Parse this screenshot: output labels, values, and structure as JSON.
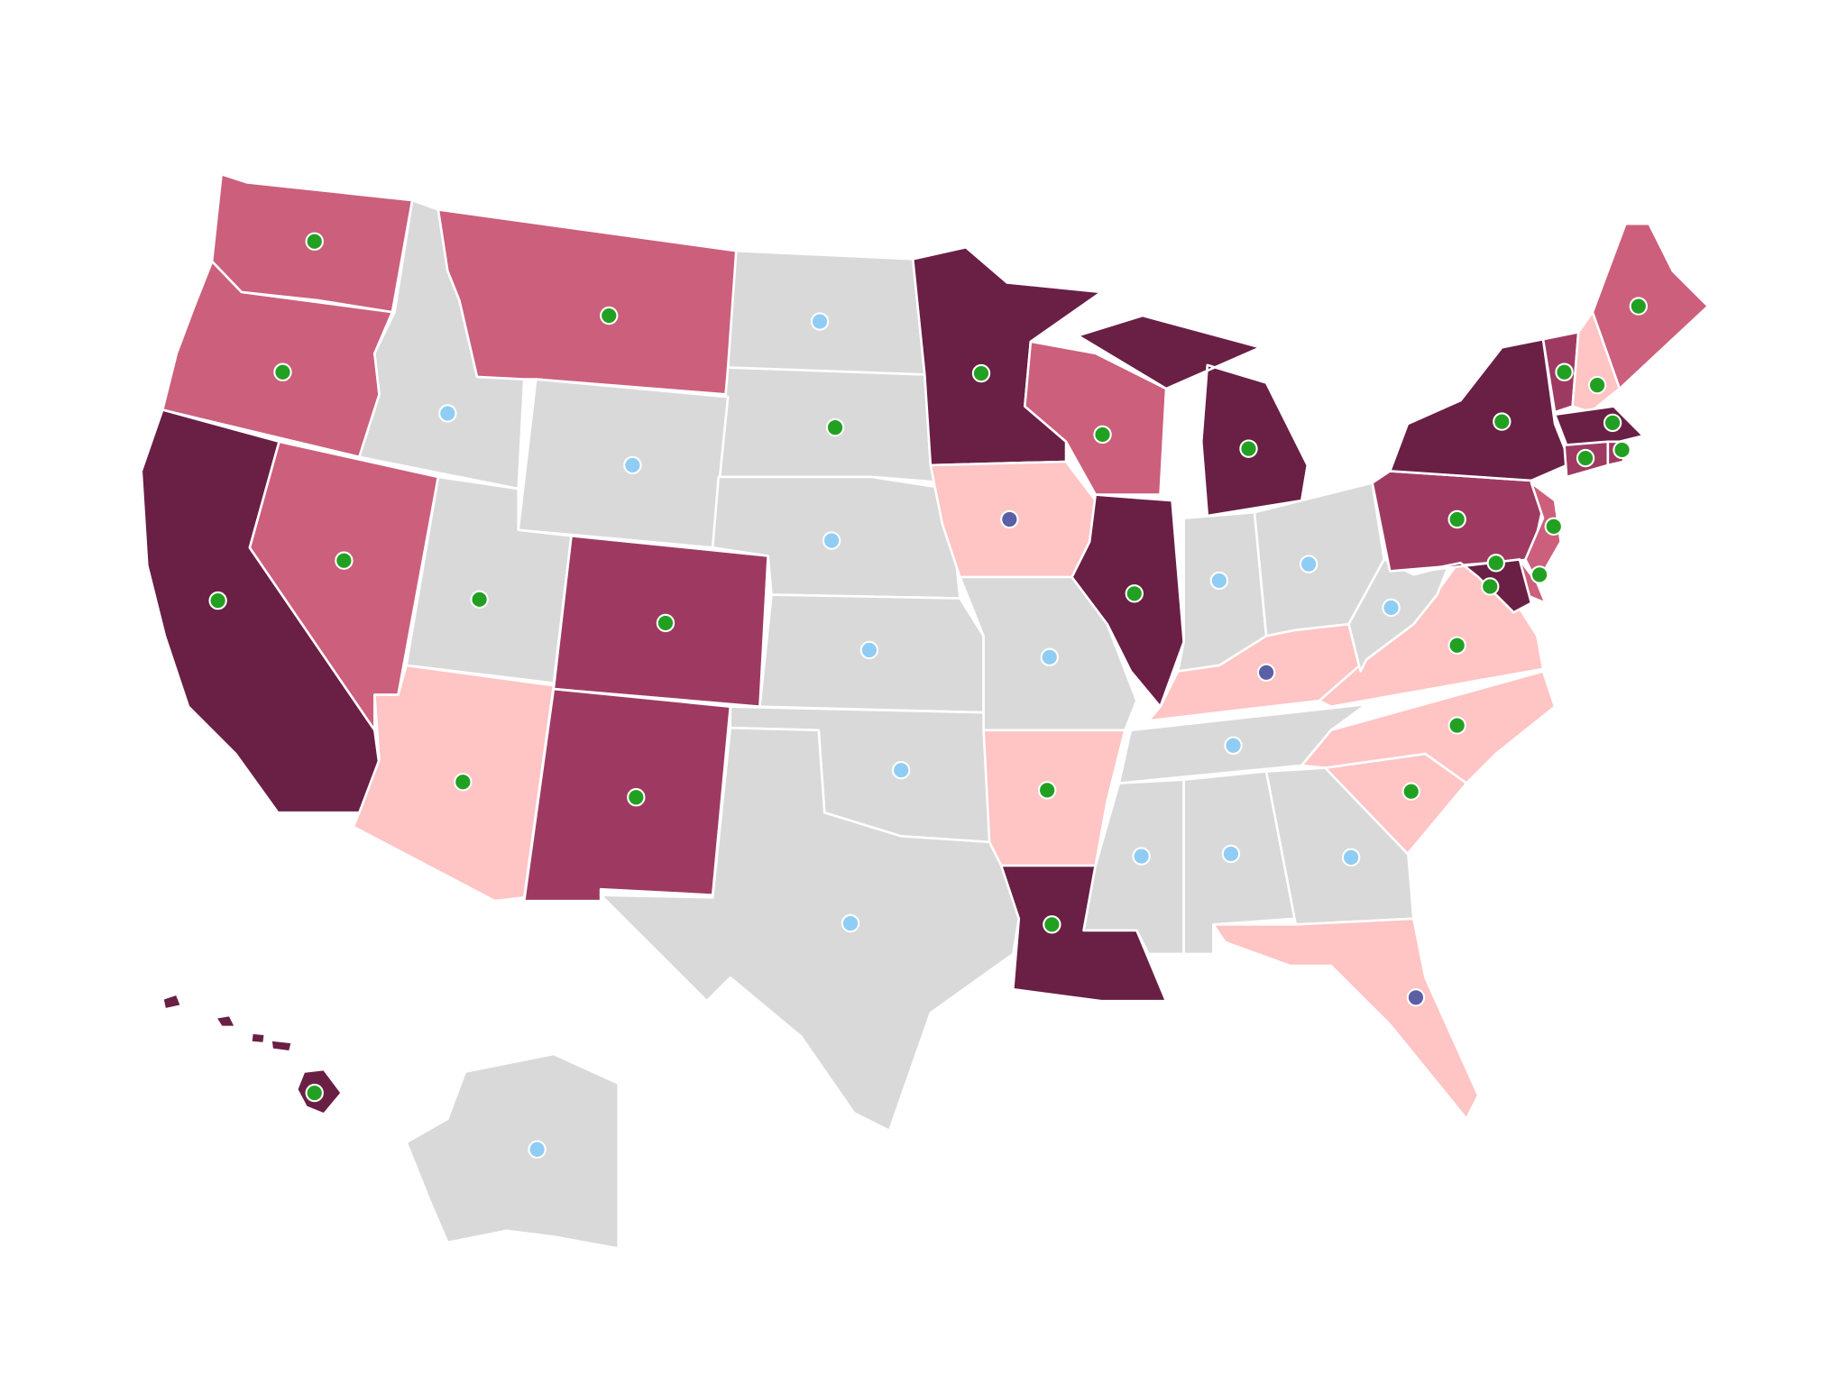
{
  "regions": [
    {
      "fill": "#cc5f7c",
      "dot": "#22a022"
    },
    {
      "fill": "#cc5f7c",
      "dot": "#22a022"
    },
    {
      "fill": "#6a1f45",
      "dot": "#22a022"
    },
    {
      "fill": "#cc5f7c",
      "dot": "#22a022"
    },
    {
      "fill": "#d9d9d9",
      "dot": "#8fcdf5"
    },
    {
      "fill": "#cc5f7c",
      "dot": "#22a022"
    },
    {
      "fill": "#d9d9d9",
      "dot": "#22a022"
    },
    {
      "fill": "#d9d9d9",
      "dot": "#8fcdf5"
    },
    {
      "fill": "#9e3a62",
      "dot": "#22a022"
    },
    {
      "fill": "#ffc4c4",
      "dot": "#22a022"
    },
    {
      "fill": "#9e3a62",
      "dot": "#22a022"
    },
    {
      "fill": "#d9d9d9",
      "dot": "#8fcdf5"
    },
    {
      "fill": "#d9d9d9",
      "dot": "#22a022"
    },
    {
      "fill": "#d9d9d9",
      "dot": "#8fcdf5"
    },
    {
      "fill": "#d9d9d9",
      "dot": "#8fcdf5"
    },
    {
      "fill": "#d9d9d9",
      "dot": "#8fcdf5"
    },
    {
      "fill": "#d9d9d9",
      "dot": "#8fcdf5"
    },
    {
      "fill": "#6a1f45",
      "dot": "#22a022"
    },
    {
      "fill": "#ffc4c4",
      "dot": "#5b5fa6"
    },
    {
      "fill": "#d9d9d9",
      "dot": "#8fcdf5"
    },
    {
      "fill": "#ffc4c4",
      "dot": "#22a022"
    },
    {
      "fill": "#6a1f45",
      "dot": "#22a022"
    },
    {
      "fill": "#cc5f7c",
      "dot": "#22a022"
    },
    {
      "fill": "#6a1f45",
      "dot": "#22a022"
    },
    {
      "fill": "#6a1f45",
      "dot": "#22a022"
    },
    {
      "fill": "#d9d9d9",
      "dot": "#8fcdf5"
    },
    {
      "fill": "#d9d9d9",
      "dot": "#8fcdf5"
    },
    {
      "fill": "#ffc4c4",
      "dot": "#5b5fa6"
    },
    {
      "fill": "#d9d9d9",
      "dot": "#8fcdf5"
    },
    {
      "fill": "#d9d9d9",
      "dot": "#8fcdf5"
    },
    {
      "fill": "#d9d9d9",
      "dot": "#8fcdf5"
    },
    {
      "fill": "#d9d9d9",
      "dot": "#8fcdf5"
    },
    {
      "fill": "#ffc4c4",
      "dot": "#5b5fa6"
    },
    {
      "fill": "#ffc4c4",
      "dot": "#22a022"
    },
    {
      "fill": "#ffc4c4",
      "dot": "#22a022"
    },
    {
      "fill": "#ffc4c4",
      "dot": "#22a022"
    },
    {
      "fill": "#d9d9d9",
      "dot": "#8fcdf5"
    },
    {
      "fill": "#9e3a62",
      "dot": "#22a022"
    },
    {
      "fill": "#6a1f45",
      "dot": "#22a022"
    },
    {
      "fill": "#cc5f7c",
      "dot": "#22a022"
    },
    {
      "fill": "#cc5f7c",
      "dot": "#22a022"
    },
    {
      "fill": "#6a1f45",
      "dot": "#22a022"
    },
    {
      "dot": "#22a022"
    },
    {
      "fill": "#9e3a62",
      "dot": "#22a022"
    },
    {
      "fill": "#ffc4c4",
      "dot": "#22a022"
    },
    {
      "fill": "#cc5f7c",
      "dot": "#22a022"
    },
    {
      "fill": "#6a1f45",
      "dot": "#22a022"
    },
    {
      "fill": "#9e3a62",
      "dot": "#22a022"
    },
    {
      "fill": "#9e3a62",
      "dot": "#22a022"
    },
    {
      "fill": "#6a1f45",
      "dot": "#22a022"
    },
    {
      "fill": "#d9d9d9",
      "dot": "#8fcdf5"
    }
  ]
}
